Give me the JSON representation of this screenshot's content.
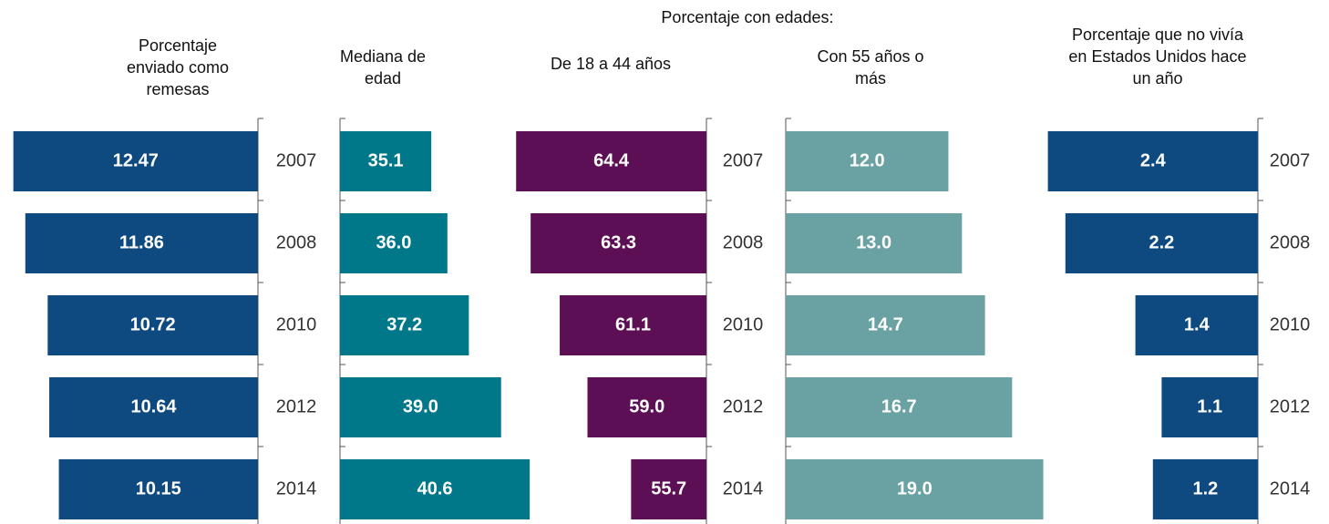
{
  "header": "Porcentaje con edades:",
  "chart_data": [
    {
      "type": "bar",
      "title": "Porcentaje enviado como remesas",
      "direction": "left",
      "color": "#0e4a80",
      "categories": [
        "2007",
        "2008",
        "2010",
        "2012",
        "2014"
      ],
      "values": [
        12.47,
        11.86,
        10.72,
        10.64,
        10.15
      ],
      "xlim": [
        0,
        12.5
      ]
    },
    {
      "type": "bar",
      "title": "Mediana de edad",
      "direction": "right",
      "color": "#00788a",
      "values": [
        35.1,
        36.0,
        37.2,
        39.0,
        40.6
      ],
      "value_labels": [
        "35.1",
        "36.0",
        "37.2",
        "39.0",
        "40.6"
      ],
      "xlim": [
        30,
        41
      ]
    },
    {
      "type": "bar",
      "title": "De 18 a 44 años",
      "direction": "left",
      "color": "#5c0f55",
      "categories": [
        "2007",
        "2008",
        "2010",
        "2012",
        "2014"
      ],
      "values": [
        64.4,
        63.3,
        61.1,
        59.0,
        55.7
      ],
      "value_labels": [
        "64.4",
        "63.3",
        "61.1",
        "59.0",
        "55.7"
      ],
      "xlim": [
        50,
        65
      ]
    },
    {
      "type": "bar",
      "title": "Con 55 años o más",
      "direction": "right",
      "color": "#6aa2a3",
      "values": [
        12.0,
        13.0,
        14.7,
        16.7,
        19.0
      ],
      "value_labels": [
        "12.0",
        "13.0",
        "14.7",
        "16.7",
        "19.0"
      ],
      "xlim": [
        0,
        19.5
      ]
    },
    {
      "type": "bar",
      "title": "Porcentaje que no vivía en Estados Unidos hace un año",
      "direction": "left",
      "color": "#0e4a80",
      "categories": [
        "2007",
        "2008",
        "2010",
        "2012",
        "2014"
      ],
      "values": [
        2.4,
        2.2,
        1.4,
        1.1,
        1.2
      ],
      "xlim": [
        0,
        2.5
      ]
    }
  ]
}
